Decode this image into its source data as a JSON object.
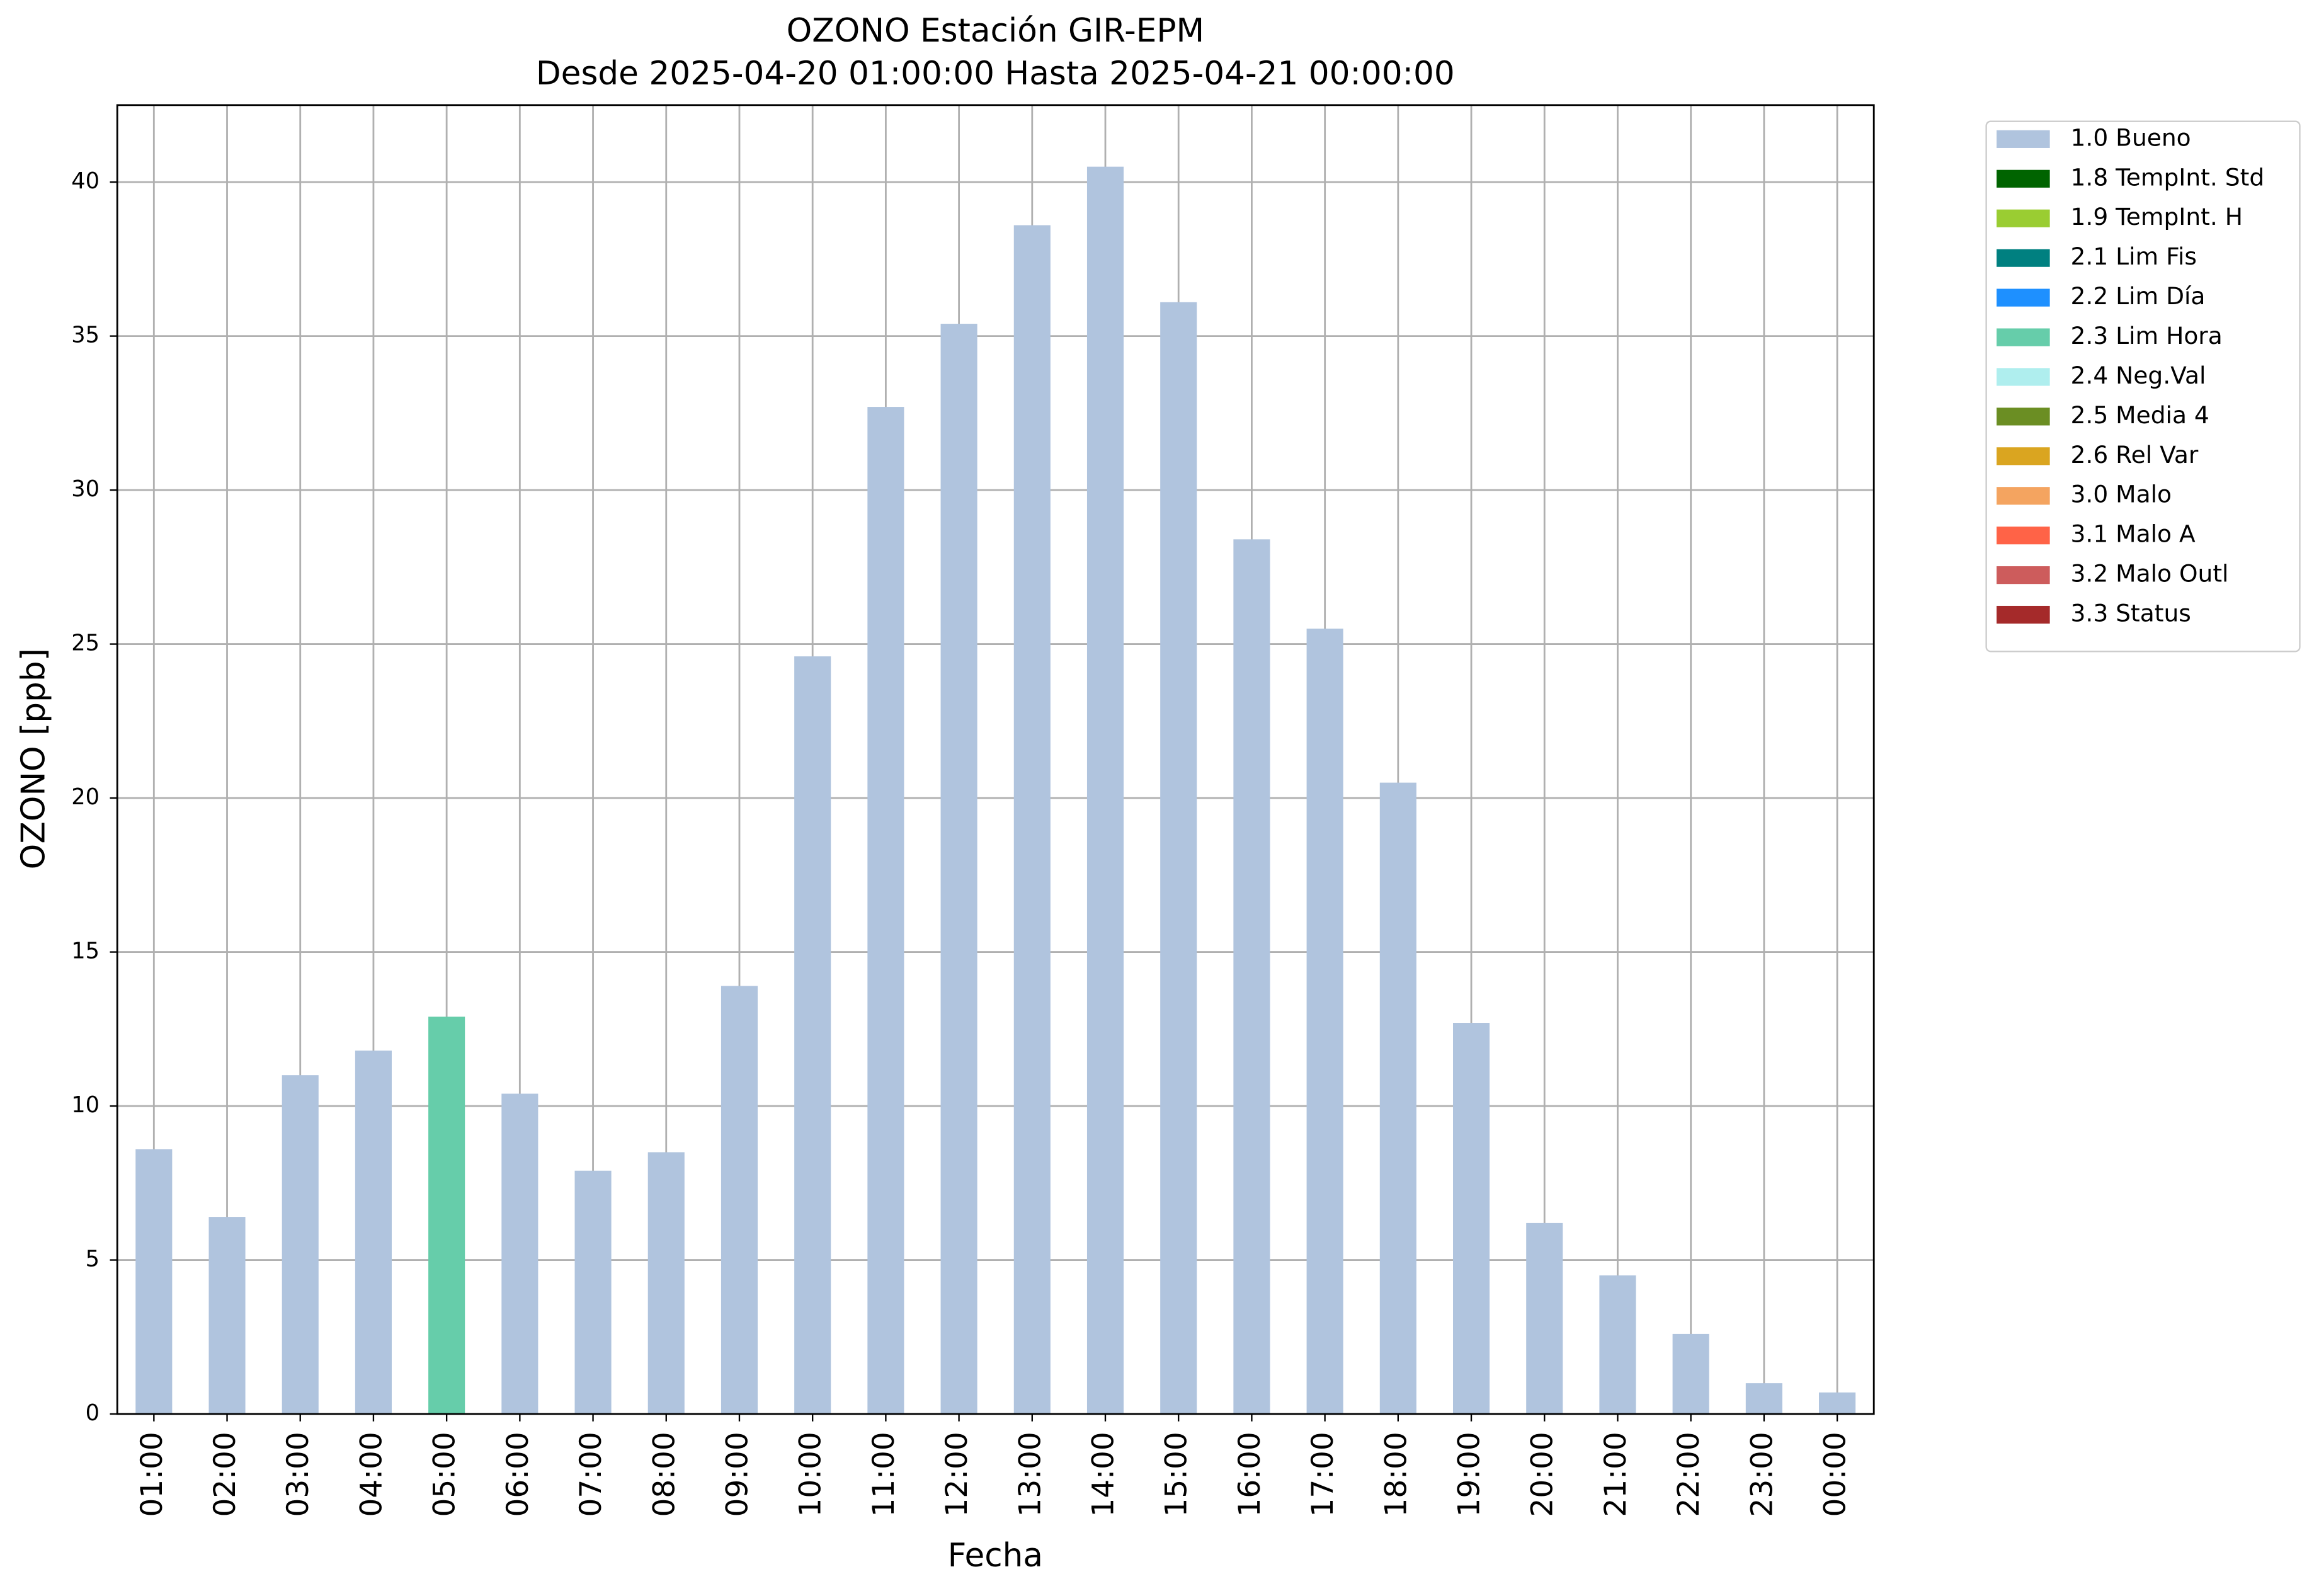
{
  "chart_data": {
    "type": "bar",
    "title": "OZONO Estación GIR-EPM",
    "subtitle": "Desde 2025-04-20 01:00:00 Hasta 2025-04-21 00:00:00",
    "x_label": "Fecha",
    "y_label": "OZONO [ppb]",
    "categories": [
      "01:00",
      "02:00",
      "03:00",
      "04:00",
      "05:00",
      "06:00",
      "07:00",
      "08:00",
      "09:00",
      "10:00",
      "11:00",
      "12:00",
      "13:00",
      "14:00",
      "15:00",
      "16:00",
      "17:00",
      "18:00",
      "19:00",
      "20:00",
      "21:00",
      "22:00",
      "23:00",
      "00:00"
    ],
    "series": [
      {
        "name": "1.0 Bueno",
        "color": "#b0c4de",
        "values": [
          8.6,
          6.4,
          11.0,
          11.8,
          null,
          10.4,
          7.9,
          8.5,
          13.9,
          24.6,
          32.7,
          35.4,
          38.6,
          40.5,
          36.1,
          28.4,
          25.5,
          20.5,
          12.7,
          6.2,
          4.5,
          2.6,
          1.0,
          0.7
        ]
      },
      {
        "name": "1.8 TempInt. Std",
        "color": "#006400",
        "values": [
          null,
          null,
          null,
          null,
          null,
          null,
          null,
          null,
          null,
          null,
          null,
          null,
          null,
          null,
          null,
          null,
          null,
          null,
          null,
          null,
          null,
          null,
          null,
          null
        ]
      },
      {
        "name": "1.9 TempInt. H",
        "color": "#9acd32",
        "values": [
          null,
          null,
          null,
          null,
          null,
          null,
          null,
          null,
          null,
          null,
          null,
          null,
          null,
          null,
          null,
          null,
          null,
          null,
          null,
          null,
          null,
          null,
          null,
          null
        ]
      },
      {
        "name": "2.1 Lim Fis",
        "color": "#008080",
        "values": [
          null,
          null,
          null,
          null,
          null,
          null,
          null,
          null,
          null,
          null,
          null,
          null,
          null,
          null,
          null,
          null,
          null,
          null,
          null,
          null,
          null,
          null,
          null,
          null
        ]
      },
      {
        "name": "2.2 Lim Día",
        "color": "#1e90ff",
        "values": [
          null,
          null,
          null,
          null,
          null,
          null,
          null,
          null,
          null,
          null,
          null,
          null,
          null,
          null,
          null,
          null,
          null,
          null,
          null,
          null,
          null,
          null,
          null,
          null
        ]
      },
      {
        "name": "2.3 Lim Hora",
        "color": "#66cdaa",
        "values": [
          null,
          null,
          null,
          null,
          12.9,
          null,
          null,
          null,
          null,
          null,
          null,
          null,
          null,
          null,
          null,
          null,
          null,
          null,
          null,
          null,
          null,
          null,
          null,
          null
        ]
      },
      {
        "name": "2.4 Neg.Val",
        "color": "#afeeee",
        "values": [
          null,
          null,
          null,
          null,
          null,
          null,
          null,
          null,
          null,
          null,
          null,
          null,
          null,
          null,
          null,
          null,
          null,
          null,
          null,
          null,
          null,
          null,
          null,
          null
        ]
      },
      {
        "name": "2.5 Media 4",
        "color": "#6b8e23",
        "values": [
          null,
          null,
          null,
          null,
          null,
          null,
          null,
          null,
          null,
          null,
          null,
          null,
          null,
          null,
          null,
          null,
          null,
          null,
          null,
          null,
          null,
          null,
          null,
          null
        ]
      },
      {
        "name": "2.6 Rel Var",
        "color": "#daa520",
        "values": [
          null,
          null,
          null,
          null,
          null,
          null,
          null,
          null,
          null,
          null,
          null,
          null,
          null,
          null,
          null,
          null,
          null,
          null,
          null,
          null,
          null,
          null,
          null,
          null
        ]
      },
      {
        "name": "3.0 Malo",
        "color": "#f4a460",
        "values": [
          null,
          null,
          null,
          null,
          null,
          null,
          null,
          null,
          null,
          null,
          null,
          null,
          null,
          null,
          null,
          null,
          null,
          null,
          null,
          null,
          null,
          null,
          null,
          null
        ]
      },
      {
        "name": "3.1 Malo A",
        "color": "#ff6347",
        "values": [
          null,
          null,
          null,
          null,
          null,
          null,
          null,
          null,
          null,
          null,
          null,
          null,
          null,
          null,
          null,
          null,
          null,
          null,
          null,
          null,
          null,
          null,
          null,
          null
        ]
      },
      {
        "name": "3.2 Malo Outl",
        "color": "#cd5c5c",
        "values": [
          null,
          null,
          null,
          null,
          null,
          null,
          null,
          null,
          null,
          null,
          null,
          null,
          null,
          null,
          null,
          null,
          null,
          null,
          null,
          null,
          null,
          null,
          null,
          null
        ]
      },
      {
        "name": "3.3 Status",
        "color": "#a52a2a",
        "values": [
          null,
          null,
          null,
          null,
          null,
          null,
          null,
          null,
          null,
          null,
          null,
          null,
          null,
          null,
          null,
          null,
          null,
          null,
          null,
          null,
          null,
          null,
          null,
          null
        ]
      }
    ],
    "ylim": [
      0,
      42.5
    ],
    "yticks": [
      0,
      5,
      10,
      15,
      20,
      25,
      30,
      35,
      40
    ],
    "grid": true,
    "legend": "outside-right"
  }
}
